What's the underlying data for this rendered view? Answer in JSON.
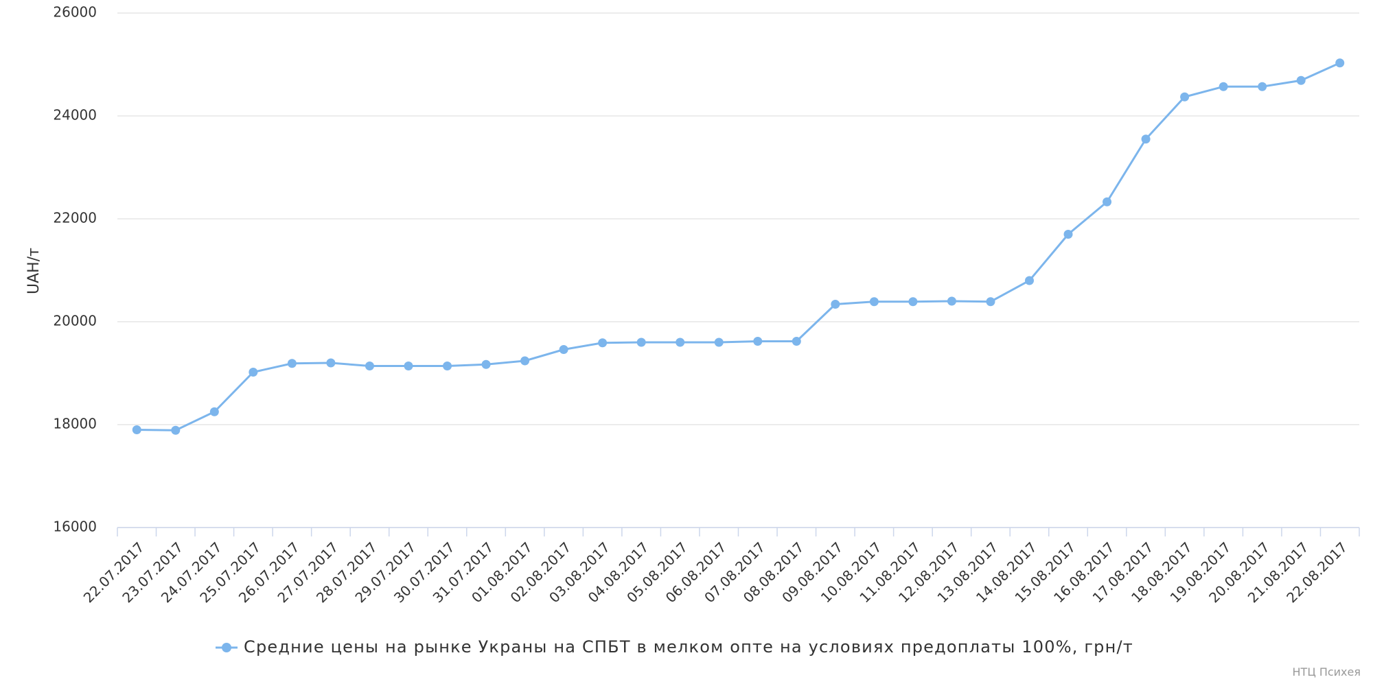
{
  "chart_data": {
    "type": "line",
    "y_axis_title": "UAH/т",
    "categories": [
      "22.07.2017",
      "23.07.2017",
      "24.07.2017",
      "25.07.2017",
      "26.07.2017",
      "27.07.2017",
      "28.07.2017",
      "29.07.2017",
      "30.07.2017",
      "31.07.2017",
      "01.08.2017",
      "02.08.2017",
      "03.08.2017",
      "04.08.2017",
      "05.08.2017",
      "06.08.2017",
      "07.08.2017",
      "08.08.2017",
      "09.08.2017",
      "10.08.2017",
      "11.08.2017",
      "12.08.2017",
      "13.08.2017",
      "14.08.2017",
      "15.08.2017",
      "16.08.2017",
      "17.08.2017",
      "18.08.2017",
      "19.08.2017",
      "20.08.2017",
      "21.08.2017",
      "22.08.2017"
    ],
    "series": [
      {
        "name": "Средние цены на рынке Украны на СПБТ в мелком опте на условиях предоплаты 100%, грн/т",
        "color": "#7cb5ec",
        "values": [
          17900,
          17890,
          18250,
          19020,
          19190,
          19200,
          19140,
          19140,
          19140,
          19170,
          19240,
          19460,
          19590,
          19600,
          19600,
          19600,
          19620,
          19620,
          20340,
          20390,
          20390,
          20400,
          20390,
          20800,
          21700,
          22330,
          23550,
          24370,
          24570,
          24570,
          24690,
          25030
        ]
      }
    ],
    "ylim": [
      16000,
      26000
    ],
    "yticks": [
      16000,
      18000,
      20000,
      22000,
      24000,
      26000
    ],
    "grid": true,
    "legend": "bottom",
    "credits": "НТЦ Психея"
  }
}
